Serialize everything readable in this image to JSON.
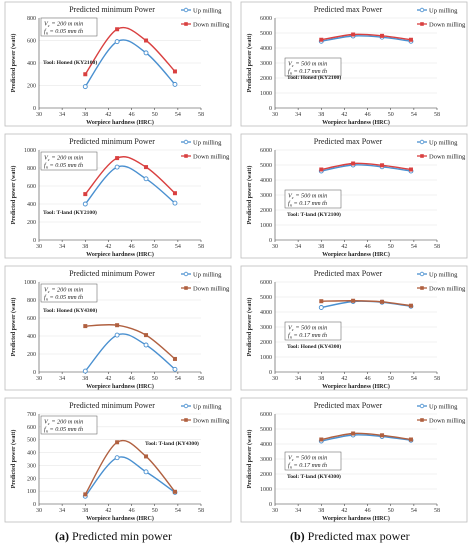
{
  "captions": {
    "left_tag": "(a)",
    "left_text": " Predicted min power",
    "right_tag": "(b)",
    "right_text": " Predicted max power"
  },
  "colors": {
    "up": "#4a90d0",
    "down": "#d94040",
    "down_alt": "#b06040"
  },
  "chart_data": [
    {
      "type": "line",
      "title": "Predicted minimum Power",
      "xlabel": "Worpiece hardness (HRC)",
      "ylabel": "Predicted power (watt)",
      "xlim": [
        30,
        58
      ],
      "xticks": [
        30,
        34,
        38,
        42,
        46,
        50,
        54,
        58
      ],
      "ylim": [
        0,
        800
      ],
      "yticks": [
        0,
        200,
        400,
        600,
        800
      ],
      "legend": "top-right",
      "annotation": [
        "V_c = 200 m min",
        "f_n = 0.05 mm th"
      ],
      "tool": "Tool: Honed (KY2100)",
      "series": [
        {
          "name": "Up milling",
          "x": [
            38,
            43.5,
            48.5,
            53.5
          ],
          "values": [
            190,
            590,
            490,
            210
          ]
        },
        {
          "name": "Down milling",
          "x": [
            38,
            43.5,
            48.5,
            53.5
          ],
          "values": [
            300,
            700,
            600,
            325
          ]
        }
      ]
    },
    {
      "type": "line",
      "title": "Predicted max Power",
      "xlabel": "Worpiece hardness (HRC)",
      "ylabel": "Predicted power (watt)",
      "xlim": [
        30,
        58
      ],
      "xticks": [
        30,
        34,
        38,
        42,
        46,
        50,
        54,
        58
      ],
      "ylim": [
        0,
        6000
      ],
      "yticks": [
        0,
        1000,
        2000,
        3000,
        4000,
        5000,
        6000
      ],
      "legend": "top-right",
      "annotation": [
        "V_c = 500 m min",
        "f_n = 0.17 mm th"
      ],
      "tool": "Tool: Honed (KY2100)",
      "series": [
        {
          "name": "Up milling",
          "x": [
            38,
            43.5,
            48.5,
            53.5
          ],
          "values": [
            4450,
            4800,
            4720,
            4450
          ]
        },
        {
          "name": "Down milling",
          "x": [
            38,
            43.5,
            48.5,
            53.5
          ],
          "values": [
            4550,
            4900,
            4810,
            4550
          ]
        }
      ]
    },
    {
      "type": "line",
      "title": "Predicted minimum Power",
      "xlabel": "Worpiece hardness (HRC)",
      "ylabel": "Predicted power (watt)",
      "xlim": [
        30,
        58
      ],
      "xticks": [
        30,
        34,
        38,
        42,
        46,
        50,
        54,
        58
      ],
      "ylim": [
        0,
        1000
      ],
      "yticks": [
        0,
        200,
        400,
        600,
        800,
        1000
      ],
      "legend": "top-right",
      "annotation": [
        "V_c = 200 m min",
        "f_n = 0.05 mm th"
      ],
      "tool": "Tool: T-land (KY2100)",
      "series": [
        {
          "name": "Up milling",
          "x": [
            38,
            43.5,
            48.5,
            53.5
          ],
          "values": [
            400,
            810,
            680,
            410
          ]
        },
        {
          "name": "Down milling",
          "x": [
            38,
            43.5,
            48.5,
            53.5
          ],
          "values": [
            510,
            910,
            810,
            520
          ]
        }
      ]
    },
    {
      "type": "line",
      "title": "Predicted max Power",
      "xlabel": "Worpiece hardness (HRC)",
      "ylabel": "Predicted power (watt)",
      "xlim": [
        30,
        58
      ],
      "xticks": [
        30,
        34,
        38,
        42,
        46,
        50,
        54,
        58
      ],
      "ylim": [
        0,
        6000
      ],
      "yticks": [
        0,
        1000,
        2000,
        3000,
        4000,
        5000,
        6000
      ],
      "legend": "top-right",
      "annotation": [
        "V_c = 500 m min",
        "f_n = 0.17 mm th"
      ],
      "tool": "Tool: T-land (KY2100)",
      "series": [
        {
          "name": "Up milling",
          "x": [
            38,
            43.5,
            48.5,
            53.5
          ],
          "values": [
            4600,
            5000,
            4880,
            4600
          ]
        },
        {
          "name": "Down milling",
          "x": [
            38,
            43.5,
            48.5,
            53.5
          ],
          "values": [
            4700,
            5100,
            4980,
            4700
          ]
        }
      ]
    },
    {
      "type": "line",
      "title": "Predicted minimum Power",
      "xlabel": "Worpiece hardness (HRC)",
      "ylabel": "Predicted power (watt)",
      "xlim": [
        30,
        58
      ],
      "xticks": [
        30,
        34,
        38,
        42,
        46,
        50,
        54,
        58
      ],
      "ylim": [
        0,
        1000
      ],
      "yticks": [
        0,
        200,
        400,
        600,
        800,
        1000
      ],
      "legend": "top-right",
      "annotation": [
        "V_c = 200 m min",
        "f_n = 0.05 mm th"
      ],
      "tool": "Tool: Honed (KY4300)",
      "series": [
        {
          "name": "Up milling",
          "x": [
            38,
            43.5,
            48.5,
            53.5
          ],
          "values": [
            10,
            410,
            300,
            30
          ]
        },
        {
          "name": "Down milling",
          "x": [
            38,
            43.5,
            48.5,
            53.5
          ],
          "values": [
            510,
            520,
            410,
            145
          ]
        }
      ]
    },
    {
      "type": "line",
      "title": "Predicted max Power",
      "xlabel": "Worpiece hardness (HRC)",
      "ylabel": "Predicted power (watt)",
      "xlim": [
        30,
        58
      ],
      "xticks": [
        30,
        34,
        38,
        42,
        46,
        50,
        54,
        58
      ],
      "ylim": [
        0,
        6000
      ],
      "yticks": [
        0,
        1000,
        2000,
        3000,
        4000,
        5000,
        6000
      ],
      "legend": "top-right",
      "annotation": [
        "V_c = 500 m min",
        "f_n = 0.17 mm th"
      ],
      "tool": "Tool: Honed (KY4300)",
      "series": [
        {
          "name": "Up milling",
          "x": [
            38,
            43.5,
            48.5,
            53.5
          ],
          "values": [
            4300,
            4700,
            4650,
            4380
          ]
        },
        {
          "name": "Down milling",
          "x": [
            38,
            43.5,
            48.5,
            53.5
          ],
          "values": [
            4720,
            4750,
            4680,
            4420
          ]
        }
      ]
    },
    {
      "type": "line",
      "title": "Predicted minimum Power",
      "xlabel": "Worpiece hardness (HRC)",
      "ylabel": "Predicted power (watt)",
      "xlim": [
        30,
        58
      ],
      "xticks": [
        30,
        34,
        38,
        42,
        46,
        50,
        54,
        58
      ],
      "ylim": [
        0,
        700
      ],
      "yticks": [
        0,
        100,
        200,
        300,
        400,
        500,
        600,
        700
      ],
      "legend": "top-right",
      "annotation": [
        "V_c = 200 m min",
        "f_n = 0.05 mm th"
      ],
      "tool": "Tool: T-land (KY4300)",
      "series": [
        {
          "name": "Up milling",
          "x": [
            38,
            43.5,
            48.5,
            53.5
          ],
          "values": [
            60,
            360,
            250,
            90
          ]
        },
        {
          "name": "Down milling",
          "x": [
            38,
            43.5,
            48.5,
            53.5
          ],
          "values": [
            75,
            480,
            370,
            95
          ]
        }
      ]
    },
    {
      "type": "line",
      "title": "Predicted max Power",
      "xlabel": "Worpiece hardness (HRC)",
      "ylabel": "Predicted power (watt)",
      "xlim": [
        30,
        58
      ],
      "xticks": [
        30,
        34,
        38,
        42,
        46,
        50,
        54,
        58
      ],
      "ylim": [
        0,
        6000
      ],
      "yticks": [
        0,
        1000,
        2000,
        3000,
        4000,
        5000,
        6000
      ],
      "legend": "top-right",
      "annotation": [
        "V_c = 500 m min",
        "f_n = 0.17 mm th"
      ],
      "tool": "Tool: T-land (KY4300)",
      "series": [
        {
          "name": "Up milling",
          "x": [
            38,
            43.5,
            48.5,
            53.5
          ],
          "values": [
            4200,
            4600,
            4500,
            4250
          ]
        },
        {
          "name": "Down milling",
          "x": [
            38,
            43.5,
            48.5,
            53.5
          ],
          "values": [
            4300,
            4700,
            4580,
            4300
          ]
        }
      ]
    }
  ]
}
